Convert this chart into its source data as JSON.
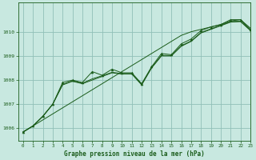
{
  "title": "Graphe pression niveau de la mer (hPa)",
  "bg_color": "#c8e8e0",
  "grid_color": "#90c0b8",
  "line_color": "#1a5c1a",
  "xlim": [
    -0.5,
    23
  ],
  "ylim": [
    1005.5,
    1011.2
  ],
  "yticks": [
    1006,
    1007,
    1008,
    1009,
    1010
  ],
  "xticks": [
    0,
    1,
    2,
    3,
    4,
    5,
    6,
    7,
    8,
    9,
    10,
    11,
    12,
    13,
    14,
    15,
    16,
    17,
    18,
    19,
    20,
    21,
    22,
    23
  ],
  "linear_line": [
    1005.85,
    1006.1,
    1006.35,
    1006.6,
    1006.85,
    1007.1,
    1007.35,
    1007.6,
    1007.85,
    1008.1,
    1008.35,
    1008.6,
    1008.85,
    1009.1,
    1009.35,
    1009.6,
    1009.85,
    1010.0,
    1010.1,
    1010.2,
    1010.3,
    1010.45,
    1010.5,
    1010.15
  ],
  "smooth_line1": [
    1005.85,
    1006.1,
    1006.5,
    1007.0,
    1007.8,
    1007.95,
    1007.85,
    1008.0,
    1008.15,
    1008.3,
    1008.25,
    1008.25,
    1007.8,
    1008.5,
    1009.0,
    1009.0,
    1009.4,
    1009.6,
    1009.95,
    1010.1,
    1010.25,
    1010.4,
    1010.42,
    1010.05
  ],
  "smooth_line2": [
    1005.85,
    1006.1,
    1006.5,
    1007.0,
    1007.82,
    1007.97,
    1007.87,
    1008.05,
    1008.18,
    1008.32,
    1008.27,
    1008.27,
    1007.82,
    1008.52,
    1009.02,
    1009.02,
    1009.42,
    1009.62,
    1009.97,
    1010.12,
    1010.27,
    1010.42,
    1010.44,
    1010.07
  ],
  "zigzag_line": [
    1005.85,
    1006.1,
    1006.5,
    1007.0,
    1007.9,
    1008.0,
    1007.9,
    1008.35,
    1008.2,
    1008.45,
    1008.3,
    1008.3,
    1007.85,
    1008.55,
    1009.1,
    1009.05,
    1009.5,
    1009.7,
    1010.05,
    1010.2,
    1010.3,
    1010.5,
    1010.5,
    1010.1
  ]
}
